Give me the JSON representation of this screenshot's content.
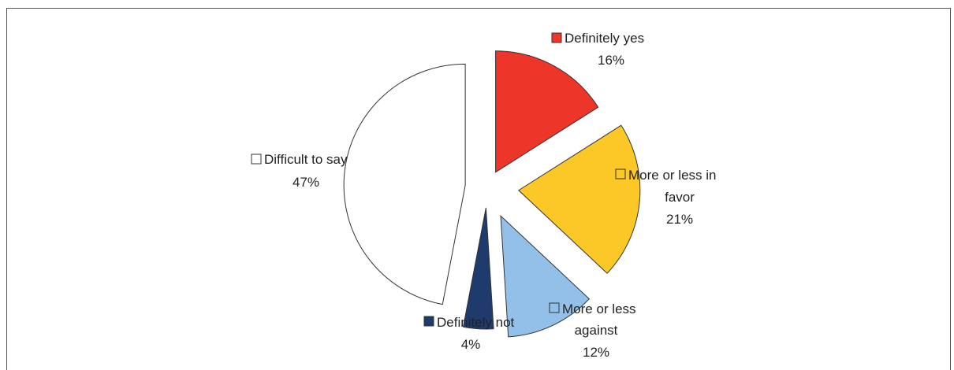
{
  "chart_data": {
    "type": "pie",
    "title": "",
    "slices": [
      {
        "name": "Definitely yes",
        "value": 16,
        "label": "16%",
        "color": "#ee3529"
      },
      {
        "name": "More or less in favor",
        "value": 21,
        "label": "21%",
        "color": "#fcc827"
      },
      {
        "name": "More or less against",
        "value": 12,
        "label": "12%",
        "color": "#93c0e8"
      },
      {
        "name": "Definitely not",
        "value": 4,
        "label": "4%",
        "color": "#1f3a6d"
      },
      {
        "name": "Difficult to say",
        "value": 47,
        "label": "47%",
        "color": "#ffffff"
      }
    ],
    "exploded": true,
    "legend": "inline labels"
  }
}
